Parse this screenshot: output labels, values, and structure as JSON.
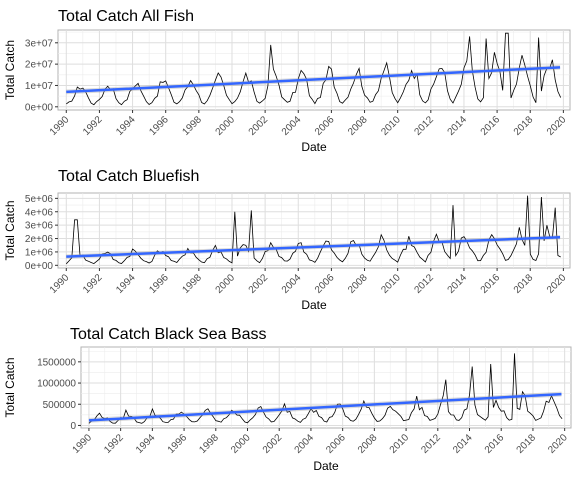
{
  "chart_data": [
    {
      "type": "line",
      "title": "Total Catch All Fish",
      "xlabel": "Date",
      "ylabel": "Total Catch",
      "x_range": [
        1989.5,
        2020.4
      ],
      "ylim": [
        -1500000,
        36000000
      ],
      "y_ticks": [
        0,
        10000000,
        20000000,
        30000000
      ],
      "y_tick_labels": [
        "0e+00",
        "1e+07",
        "2e+07",
        "3e+07"
      ],
      "x_ticks": [
        1990,
        1992,
        1994,
        1996,
        1998,
        2000,
        2002,
        2004,
        2006,
        2008,
        2010,
        2012,
        2014,
        2016,
        2018,
        2020
      ],
      "grid": true,
      "seasonal_base": [
        1500000,
        2500000,
        4500000,
        7000000,
        10000000,
        13000000,
        12000000,
        9000000,
        5000000,
        2500000
      ],
      "amplitude_trend": [
        0.75,
        1.75
      ],
      "x_start": 1990.0,
      "step_years": 0.1667,
      "n_points": 180,
      "peaks": [
        [
          2002.4,
          29000000
        ],
        [
          2014.4,
          33000000
        ],
        [
          2015.3,
          32000000
        ],
        [
          2016.6,
          34500000
        ],
        [
          2018.5,
          32500000
        ]
      ],
      "series": [
        {
          "role": "data",
          "values": []
        },
        {
          "name": "trend",
          "role": "trend",
          "x": [
            1990,
            2019.8
          ],
          "values": [
            7000000,
            18500000
          ]
        }
      ]
    },
    {
      "type": "line",
      "title": "Total Catch Bluefish",
      "xlabel": "Date",
      "ylabel": "Total Catch",
      "x_range": [
        1989.5,
        2020.4
      ],
      "ylim": [
        -200000,
        5400000
      ],
      "y_ticks": [
        0,
        1000000,
        2000000,
        3000000,
        4000000,
        5000000
      ],
      "y_tick_labels": [
        "0e+00",
        "1e+06",
        "2e+06",
        "3e+06",
        "4e+06",
        "5e+06"
      ],
      "x_ticks": [
        1990,
        1992,
        1994,
        1996,
        1998,
        2000,
        2002,
        2004,
        2006,
        2008,
        2010,
        2012,
        2014,
        2016,
        2018,
        2020
      ],
      "grid": true,
      "seasonal_base": [
        200000,
        400000,
        700000,
        1000000,
        1300000,
        1100000,
        900000,
        600000,
        400000,
        250000
      ],
      "amplitude_trend": [
        0.7,
        2.0
      ],
      "x_start": 1990.0,
      "step_years": 0.1667,
      "n_points": 180,
      "peaks": [
        [
          1990.6,
          3400000
        ],
        [
          2000.2,
          4000000
        ],
        [
          2001.2,
          4100000
        ],
        [
          2013.4,
          4500000
        ],
        [
          2017.8,
          5200000
        ],
        [
          2018.7,
          5100000
        ],
        [
          2019.5,
          4300000
        ]
      ],
      "series": [
        {
          "role": "data",
          "values": []
        },
        {
          "name": "trend",
          "role": "trend",
          "x": [
            1990,
            2019.8
          ],
          "values": [
            650000,
            2100000
          ]
        }
      ]
    },
    {
      "type": "line",
      "title": "Total Catch Black Sea Bass",
      "xlabel": "Date",
      "ylabel": "Total Catch",
      "x_range": [
        1989.5,
        2020.4
      ],
      "ylim": [
        -60000,
        1850000
      ],
      "y_ticks": [
        0,
        500000,
        1000000,
        1500000
      ],
      "y_tick_labels": [
        "0",
        "500000",
        "1000000",
        "1500000"
      ],
      "x_ticks": [
        1990,
        1992,
        1994,
        1996,
        1998,
        2000,
        2002,
        2004,
        2006,
        2008,
        2010,
        2012,
        2014,
        2016,
        2018,
        2020
      ],
      "grid": true,
      "seasonal_base": [
        60000,
        100000,
        150000,
        220000,
        300000,
        260000,
        200000,
        150000,
        100000,
        70000
      ],
      "amplitude_trend": [
        0.9,
        2.3
      ],
      "x_start": 1990.0,
      "step_years": 0.1667,
      "n_points": 180,
      "peaks": [
        [
          2012.5,
          1080000
        ],
        [
          2014.2,
          1390000
        ],
        [
          2015.3,
          1450000
        ],
        [
          2016.8,
          1700000
        ]
      ],
      "series": [
        {
          "role": "data",
          "values": []
        },
        {
          "name": "trend",
          "role": "trend",
          "x": [
            1990,
            2019.8
          ],
          "values": [
            120000,
            740000
          ]
        }
      ]
    }
  ]
}
